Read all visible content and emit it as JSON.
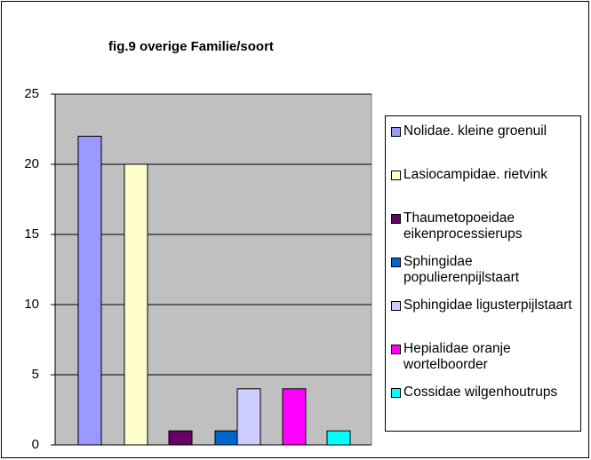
{
  "chart_data": {
    "type": "bar",
    "title": "fig.9  overige Familie/soort",
    "series": [
      {
        "name": "Nolidae. kleine groenuil",
        "color": "#9999ff",
        "values": [
          22
        ]
      },
      {
        "name": "Lasiocampidae. rietvink",
        "color": "#ffffcc",
        "values": [
          20
        ]
      },
      {
        "name": "Thaumetopoeidae eikenprocessierups",
        "color": "#660066",
        "values": [
          1
        ]
      },
      {
        "name": "Sphingidae populierenpijlstaart",
        "color": "#0066cc",
        "values": [
          1
        ]
      },
      {
        "name": "Sphingidae ligusterpijlstaart",
        "color": "#ccccff",
        "values": [
          4
        ]
      },
      {
        "name": "Hepialidae oranje wortelboorder",
        "color": "#ff00ff",
        "values": [
          4
        ]
      },
      {
        "name": "Cossidae wilgenhoutrups",
        "color": "#00ffff",
        "values": [
          1
        ]
      }
    ],
    "ylim": [
      0,
      25
    ],
    "yticks": [
      0,
      5,
      10,
      15,
      20,
      25
    ],
    "grid": true,
    "legend": "right"
  }
}
